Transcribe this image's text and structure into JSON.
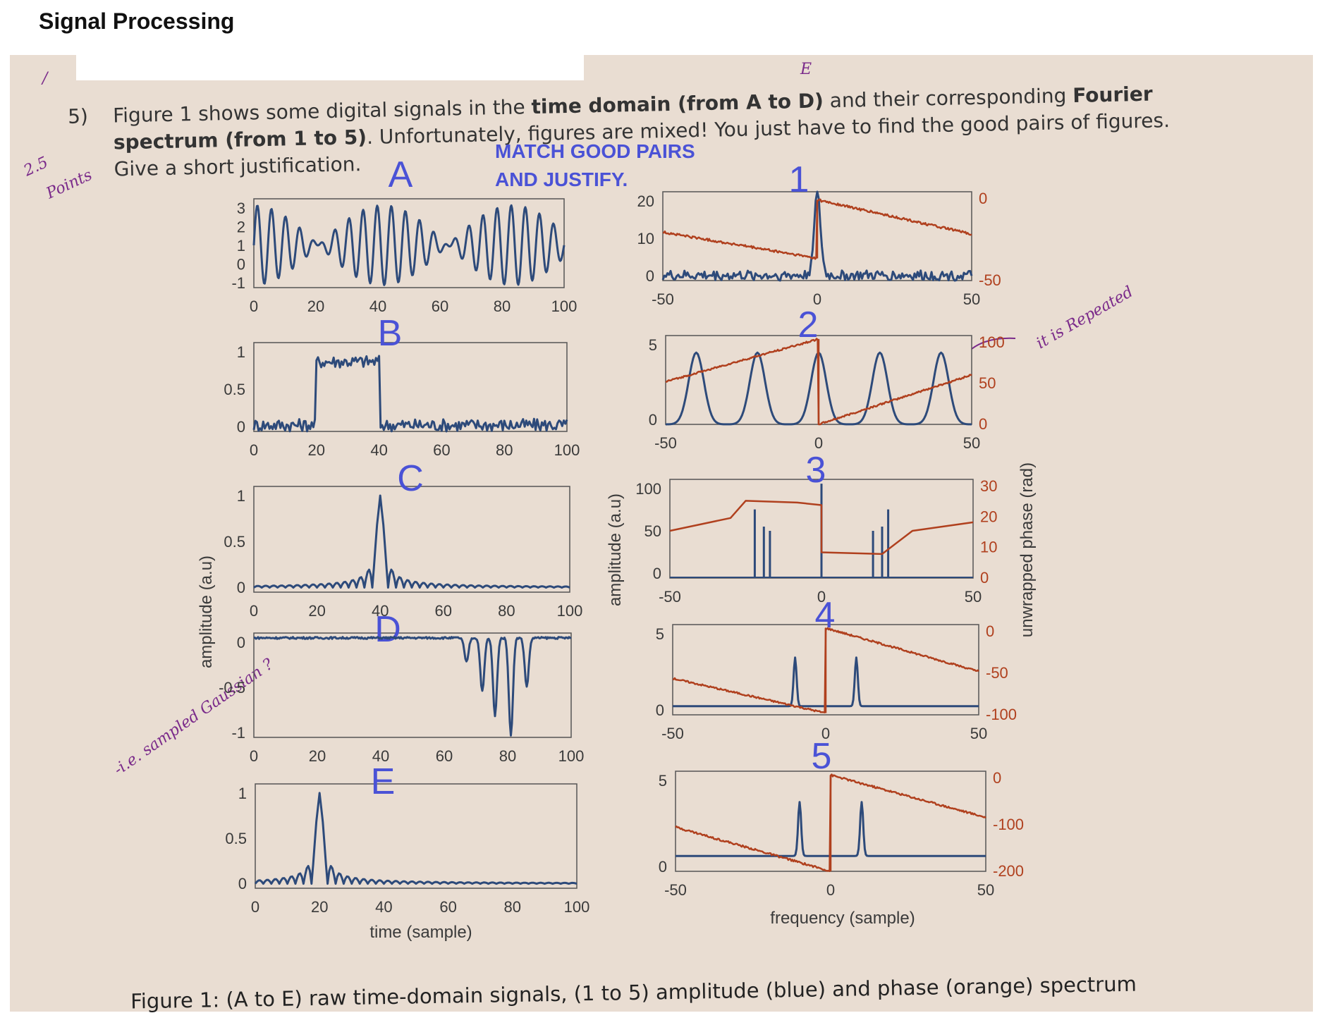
{
  "header": {
    "title": "Signal Processing"
  },
  "question": {
    "number": "5)",
    "line1_pre": "Figure 1 shows some digital signals in the ",
    "line1_bold": "time domain (from A to D)",
    "line1_post": " and their corresponding ",
    "line1_bold2": "Fourier",
    "line2_bold": "spectrum (from 1 to 5)",
    "line2_post": ". Unfortunately, figures are mixed! You just have to find the good pairs of figures.",
    "line3": "Give a short justification."
  },
  "annotations": {
    "instruction_line1": "MATCH GOOD PAIRS",
    "instruction_line2": "AND JUSTIFY.",
    "margin_score": "2.5",
    "margin_points": "Points",
    "margin_mark": "/",
    "note_sampled": "-i.e. sampled Gaussian ?",
    "note_repeated": "it is Repeated",
    "handwritten_E": "E"
  },
  "caption": "Figure 1: (A to E) raw time-domain signals, (1 to 5) amplitude (blue) and phase (orange) spectrum",
  "axes": {
    "time_xlabel": "time (sample)",
    "freq_xlabel": "frequency (sample)",
    "amp_ylabel_left": "amplitude (a.u)",
    "amp_ylabel_mid": "amplitude (a.u)",
    "phase_ylabel": "unwrapped phase (rad)"
  },
  "colors": {
    "amplitude": "#2d4a7a",
    "phase": "#b0401e",
    "letter": "#4a52d6"
  },
  "chart_data": [
    {
      "id": "A",
      "type": "line",
      "label": "A",
      "x_ticks": [
        "0",
        "20",
        "40",
        "60",
        "80",
        "100"
      ],
      "y_ticks": [
        "3",
        "2",
        "1",
        "0",
        "-1"
      ],
      "xlim": [
        0,
        100
      ],
      "ylim": [
        -1,
        3.4
      ],
      "series": [
        {
          "kind": "sum_of_sines",
          "freqs": [
            0.13,
            0.145
          ],
          "amplitude": 1.1,
          "offset": 1.1
        }
      ]
    },
    {
      "id": "B",
      "type": "line",
      "label": "B",
      "x_ticks": [
        "0",
        "20",
        "40",
        "60",
        "80",
        "100"
      ],
      "y_ticks": [
        "1",
        "0.5",
        "0"
      ],
      "xlim": [
        0,
        100
      ],
      "ylim": [
        -0.1,
        1.3
      ],
      "series": [
        {
          "kind": "noisy_rect",
          "start": 20,
          "end": 40,
          "high": 1,
          "noise": 0.1
        }
      ]
    },
    {
      "id": "C",
      "type": "line",
      "label": "C",
      "x_ticks": [
        "0",
        "20",
        "40",
        "60",
        "80",
        "100"
      ],
      "y_ticks": [
        "1",
        "0.5",
        "0"
      ],
      "xlim": [
        0,
        100
      ],
      "ylim": [
        -0.05,
        1.1
      ],
      "series": [
        {
          "kind": "sinc",
          "center": 40,
          "width": 2.5
        }
      ]
    },
    {
      "id": "D",
      "type": "line",
      "label": "D",
      "x_ticks": [
        "0",
        "20",
        "40",
        "60",
        "80",
        "100"
      ],
      "y_ticks": [
        "0",
        "-0.5",
        "-1"
      ],
      "xlim": [
        0,
        100
      ],
      "ylim": [
        -1.02,
        0.05
      ],
      "series": [
        {
          "kind": "neg_pulses",
          "centers": [
            67,
            72,
            76,
            81,
            86
          ],
          "depths": [
            0.25,
            0.55,
            0.8,
            1.0,
            0.5
          ]
        }
      ]
    },
    {
      "id": "E",
      "type": "line",
      "label": "E",
      "x_ticks": [
        "0",
        "20",
        "40",
        "60",
        "80",
        "100"
      ],
      "y_ticks": [
        "1",
        "0.5",
        "0"
      ],
      "xlim": [
        0,
        100
      ],
      "ylim": [
        -0.05,
        1.1
      ],
      "series": [
        {
          "kind": "sinc",
          "center": 20,
          "width": 2.5
        }
      ]
    },
    {
      "id": "1",
      "type": "line",
      "label": "1",
      "x_ticks": [
        "-50",
        "0",
        "50"
      ],
      "y_ticks": [
        "20",
        "10",
        "0"
      ],
      "phase_ticks": [
        "0",
        "-50"
      ],
      "xlim": [
        -50,
        50
      ],
      "ylim": [
        0,
        22
      ],
      "series": [
        {
          "name": "amplitude",
          "kind": "peak_noise",
          "center": 0,
          "height": 20,
          "width": 1.5,
          "noise": 2.5
        },
        {
          "name": "phase",
          "kind": "phase_jump",
          "left": [
            12,
            5.5
          ],
          "right": [
            20,
            11.5
          ],
          "jump_at": 0
        }
      ]
    },
    {
      "id": "2",
      "type": "line",
      "label": "2",
      "x_ticks": [
        "-50",
        "0",
        "50"
      ],
      "y_ticks": [
        "5",
        "0"
      ],
      "phase_ticks": [
        "100",
        "50",
        "0"
      ],
      "xlim": [
        -50,
        50
      ],
      "ylim": [
        0,
        5.2
      ],
      "series": [
        {
          "name": "amplitude",
          "kind": "periodic_bumps",
          "centers": [
            -40,
            -20,
            0,
            20,
            40
          ],
          "height": 4.2,
          "width": 3.5
        },
        {
          "name": "phase",
          "kind": "phase_jump",
          "left": [
            2.5,
            5.0
          ],
          "right": [
            0,
            2.9
          ],
          "jump_at": 0
        }
      ]
    },
    {
      "id": "3",
      "type": "line",
      "label": "3",
      "x_ticks": [
        "-50",
        "0",
        "50"
      ],
      "y_ticks": [
        "100",
        "50",
        "0"
      ],
      "phase_ticks": [
        "30",
        "20",
        "10",
        "0"
      ],
      "xlim": [
        -50,
        50
      ],
      "ylim": [
        0,
        115
      ],
      "series": [
        {
          "name": "amplitude",
          "kind": "spikes",
          "positions": [
            -22,
            -19,
            -17,
            0,
            17,
            20,
            22
          ],
          "heights": [
            80,
            60,
            55,
            110,
            55,
            60,
            80
          ]
        },
        {
          "name": "phase",
          "kind": "phase_steps",
          "points": [
            [
              -50,
              55
            ],
            [
              -30,
              70
            ],
            [
              -25,
              90
            ],
            [
              -8,
              88
            ],
            [
              0,
              85
            ],
            [
              0,
              30
            ],
            [
              20,
              28
            ],
            [
              30,
              55
            ],
            [
              50,
              65
            ]
          ]
        }
      ]
    },
    {
      "id": "4",
      "type": "line",
      "label": "4",
      "x_ticks": [
        "-50",
        "0",
        "50"
      ],
      "y_ticks": [
        "5",
        "0"
      ],
      "phase_ticks": [
        "0",
        "-50",
        "-100"
      ],
      "xlim": [
        -50,
        50
      ],
      "ylim": [
        0,
        5.2
      ],
      "series": [
        {
          "name": "amplitude",
          "kind": "twin_peaks",
          "positions": [
            -10,
            10
          ],
          "height": 2.8,
          "baseline": 0.5,
          "width": 0.7
        },
        {
          "name": "phase",
          "kind": "phase_jump",
          "left": [
            2.1,
            0.1
          ],
          "right": [
            5.0,
            2.5
          ],
          "jump_at": 0
        }
      ]
    },
    {
      "id": "5",
      "type": "line",
      "label": "5",
      "x_ticks": [
        "-50",
        "0",
        "50"
      ],
      "y_ticks": [
        "5",
        "0"
      ],
      "phase_ticks": [
        "0",
        "-100",
        "-200"
      ],
      "xlim": [
        -50,
        50
      ],
      "ylim": [
        0,
        5.2
      ],
      "series": [
        {
          "name": "amplitude",
          "kind": "twin_peaks",
          "positions": [
            -10,
            10
          ],
          "height": 2.8,
          "baseline": 0.8,
          "width": 0.7
        },
        {
          "name": "phase",
          "kind": "phase_jump",
          "left": [
            2.3,
            0.0
          ],
          "right": [
            5.0,
            2.8
          ],
          "jump_at": 0
        }
      ]
    }
  ]
}
